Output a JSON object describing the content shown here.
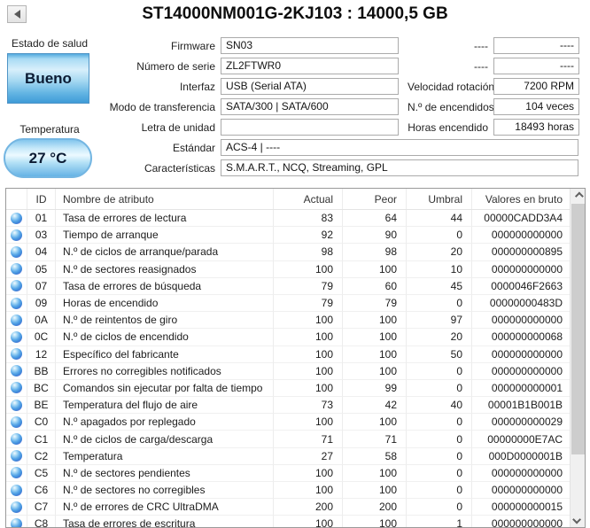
{
  "window": {
    "title": "ST14000NM001G-2KJ103 : 14000,5 GB"
  },
  "icons": {
    "back-icon": "left-pointing triangle ◀",
    "status-ok-icon": "blue glossy orb ●",
    "chevron-up-icon": "∧",
    "chevron-down-icon": "∨"
  },
  "colors": {
    "health_good_blue": "#4aa3dc",
    "status_orb_blue": "#58a7e8",
    "field_border": "#ababab",
    "table_border": "#9a9a9a"
  },
  "health": {
    "label": "Estado de salud",
    "status": "Bueno",
    "temp_label": "Temperatura",
    "temp_value": "27 °C"
  },
  "info_left": [
    {
      "label": "Firmware",
      "value": "SN03"
    },
    {
      "label": "Número de serie",
      "value": "ZL2FTWR0"
    },
    {
      "label": "Interfaz",
      "value": "USB (Serial ATA)"
    },
    {
      "label": "Modo de transferencia",
      "value": "SATA/300 | SATA/600"
    },
    {
      "label": "Letra de unidad",
      "value": ""
    },
    {
      "label": "Estándar",
      "value": "ACS-4 | ----",
      "wide": true
    },
    {
      "label": "Características",
      "value": "S.M.A.R.T., NCQ, Streaming, GPL",
      "wide": true
    }
  ],
  "info_right": [
    {
      "label": "----",
      "value": "----"
    },
    {
      "label": "----",
      "value": "----"
    },
    {
      "label": "Velocidad rotación",
      "value": "7200 RPM"
    },
    {
      "label": "N.º de encendidos",
      "value": "104 veces"
    },
    {
      "label": "Horas encendido",
      "value": "18493 horas"
    }
  ],
  "smart_table": {
    "columns": {
      "id": "ID",
      "name": "Nombre de atributo",
      "actual": "Actual",
      "peor": "Peor",
      "umbral": "Umbral",
      "raw": "Valores en bruto"
    },
    "rows": [
      {
        "id": "01",
        "name": "Tasa de errores de lectura",
        "actual": "83",
        "peor": "64",
        "umbral": "44",
        "raw": "00000CADD3A4"
      },
      {
        "id": "03",
        "name": "Tiempo de arranque",
        "actual": "92",
        "peor": "90",
        "umbral": "0",
        "raw": "000000000000"
      },
      {
        "id": "04",
        "name": "N.º de ciclos de arranque/parada",
        "actual": "98",
        "peor": "98",
        "umbral": "20",
        "raw": "000000000895"
      },
      {
        "id": "05",
        "name": "N.º de sectores reasignados",
        "actual": "100",
        "peor": "100",
        "umbral": "10",
        "raw": "000000000000"
      },
      {
        "id": "07",
        "name": "Tasa de errores de búsqueda",
        "actual": "79",
        "peor": "60",
        "umbral": "45",
        "raw": "0000046F2663"
      },
      {
        "id": "09",
        "name": "Horas de encendido",
        "actual": "79",
        "peor": "79",
        "umbral": "0",
        "raw": "00000000483D"
      },
      {
        "id": "0A",
        "name": "N.º de reintentos de giro",
        "actual": "100",
        "peor": "100",
        "umbral": "97",
        "raw": "000000000000"
      },
      {
        "id": "0C",
        "name": "N.º de ciclos de encendido",
        "actual": "100",
        "peor": "100",
        "umbral": "20",
        "raw": "000000000068"
      },
      {
        "id": "12",
        "name": "Específico del fabricante",
        "actual": "100",
        "peor": "100",
        "umbral": "50",
        "raw": "000000000000"
      },
      {
        "id": "BB",
        "name": "Errores no corregibles notificados",
        "actual": "100",
        "peor": "100",
        "umbral": "0",
        "raw": "000000000000"
      },
      {
        "id": "BC",
        "name": "Comandos sin ejecutar por falta de tiempo",
        "actual": "100",
        "peor": "99",
        "umbral": "0",
        "raw": "000000000001"
      },
      {
        "id": "BE",
        "name": "Temperatura del flujo de aire",
        "actual": "73",
        "peor": "42",
        "umbral": "40",
        "raw": "00001B1B001B"
      },
      {
        "id": "C0",
        "name": "N.º apagados por replegado",
        "actual": "100",
        "peor": "100",
        "umbral": "0",
        "raw": "000000000029"
      },
      {
        "id": "C1",
        "name": "N.º de ciclos de carga/descarga",
        "actual": "71",
        "peor": "71",
        "umbral": "0",
        "raw": "00000000E7AC"
      },
      {
        "id": "C2",
        "name": "Temperatura",
        "actual": "27",
        "peor": "58",
        "umbral": "0",
        "raw": "000D0000001B"
      },
      {
        "id": "C5",
        "name": "N.º de sectores pendientes",
        "actual": "100",
        "peor": "100",
        "umbral": "0",
        "raw": "000000000000"
      },
      {
        "id": "C6",
        "name": "N.º de sectores no corregibles",
        "actual": "100",
        "peor": "100",
        "umbral": "0",
        "raw": "000000000000"
      },
      {
        "id": "C7",
        "name": "N.º de errores de CRC UltraDMA",
        "actual": "200",
        "peor": "200",
        "umbral": "0",
        "raw": "000000000015"
      },
      {
        "id": "C8",
        "name": "Tasa de errores de escritura",
        "actual": "100",
        "peor": "100",
        "umbral": "1",
        "raw": "000000000000"
      }
    ]
  }
}
